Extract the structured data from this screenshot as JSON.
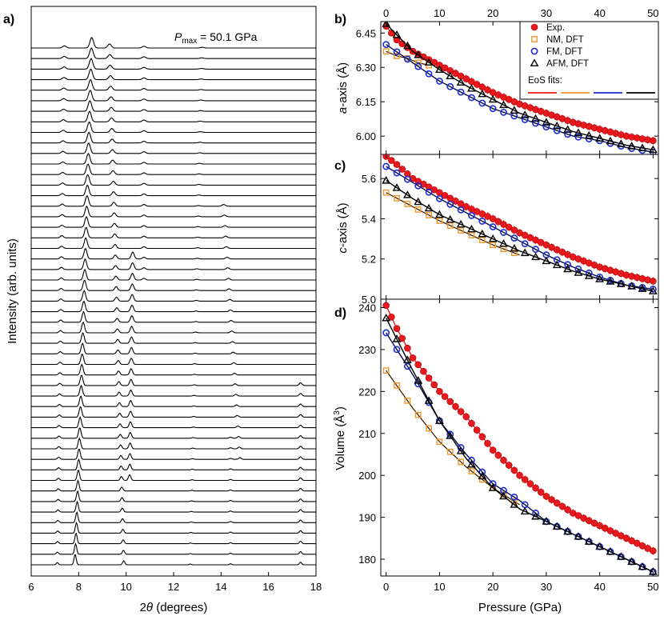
{
  "figure": {
    "panel_labels": [
      "a)",
      "b)",
      "c)",
      "d)"
    ],
    "pmax_label": "P",
    "pmax_sub": "max",
    "pmax_value": " =  50.1 GPa",
    "colors": {
      "exp": "#e8191e",
      "nm": "#f0962b",
      "fm": "#1a2bd6",
      "afm": "#000000"
    }
  },
  "chart_data": [
    {
      "id": "a",
      "type": "line",
      "title": "",
      "xlabel_prefix": "2",
      "xlabel_symbol": "θ",
      "xlabel_suffix": " (degrees)",
      "ylabel": "Intensity (arb. units)",
      "xlim": [
        6,
        18
      ],
      "x_ticks": [
        "6",
        "8",
        "10",
        "12",
        "14",
        "16",
        "18"
      ],
      "n_patterns": 50,
      "note": "stacked XRD patterns; bottom = lowest pressure, top = 50.1 GPa",
      "peaks_bottom": [
        {
          "pos": 7.1,
          "h": 0.3
        },
        {
          "pos": 7.85,
          "h": 1.2
        },
        {
          "pos": 9.9,
          "h": 0.45
        },
        {
          "pos": 12.7,
          "h": 0.12
        },
        {
          "pos": 14.4,
          "h": 0.12
        },
        {
          "pos": 17.35,
          "h": 0.4
        }
      ],
      "peaks_top": [
        {
          "pos": 8.55,
          "h": 1.2
        },
        {
          "pos": 9.3,
          "h": 0.7
        },
        {
          "pos": 10.75,
          "h": 0.2
        }
      ]
    },
    {
      "id": "b",
      "type": "scatter",
      "xlabel": "Pressure (GPa)",
      "ylabel_italic": "a",
      "ylabel_rest": "-axis (Å)",
      "xlim": [
        -1,
        51
      ],
      "ylim": [
        5.92,
        6.5
      ],
      "x_ticks": [
        "0",
        "10",
        "20",
        "30",
        "40",
        "50"
      ],
      "y_ticks": [
        "6.00",
        "6.15",
        "6.30",
        "6.45"
      ],
      "y_tick_values": [
        6.0,
        6.15,
        6.3,
        6.45
      ],
      "series": [
        {
          "name": "Exp.",
          "x": [
            0,
            2,
            5,
            10,
            15,
            20,
            25,
            30,
            35,
            40,
            45,
            50
          ],
          "y": [
            6.48,
            6.42,
            6.37,
            6.31,
            6.25,
            6.19,
            6.14,
            6.1,
            6.06,
            6.03,
            6.0,
            5.98
          ]
        },
        {
          "name": "NM, DFT",
          "x": [
            0,
            2,
            4,
            6,
            8
          ],
          "y": [
            6.37,
            6.35,
            6.34,
            6.32,
            6.31
          ]
        },
        {
          "name": "FM, DFT",
          "x": [
            0,
            5,
            10,
            15,
            20,
            25,
            30,
            35,
            40,
            45,
            50
          ],
          "y": [
            6.4,
            6.32,
            6.24,
            6.18,
            6.12,
            6.08,
            6.04,
            6.0,
            5.98,
            5.95,
            5.93
          ]
        },
        {
          "name": "AFM, DFT",
          "x": [
            0,
            5,
            10,
            15,
            20,
            25,
            30,
            35,
            40,
            45,
            50
          ],
          "y": [
            6.49,
            6.37,
            6.29,
            6.22,
            6.16,
            6.1,
            6.06,
            6.02,
            5.99,
            5.96,
            5.94
          ]
        }
      ]
    },
    {
      "id": "c",
      "type": "scatter",
      "xlabel": "",
      "ylabel_italic": "c",
      "ylabel_rest": "-axis (Å)",
      "xlim": [
        -1,
        51
      ],
      "ylim": [
        5.0,
        5.72
      ],
      "y_ticks": [
        "5.0",
        "5.2",
        "5.4",
        "5.6"
      ],
      "y_tick_values": [
        5.0,
        5.2,
        5.4,
        5.6
      ],
      "series": [
        {
          "name": "Exp.",
          "x": [
            0,
            2,
            5,
            10,
            15,
            20,
            25,
            30,
            35,
            40,
            45,
            50
          ],
          "y": [
            5.71,
            5.67,
            5.6,
            5.53,
            5.46,
            5.4,
            5.33,
            5.27,
            5.21,
            5.16,
            5.12,
            5.09
          ]
        },
        {
          "name": "NM, DFT",
          "x": [
            0,
            5,
            10,
            15,
            20,
            25
          ],
          "y": [
            5.53,
            5.46,
            5.39,
            5.33,
            5.27,
            5.22
          ]
        },
        {
          "name": "FM, DFT",
          "x": [
            0,
            5,
            10,
            15,
            20,
            25,
            30,
            35,
            40,
            45,
            50
          ],
          "y": [
            5.66,
            5.58,
            5.5,
            5.43,
            5.36,
            5.29,
            5.22,
            5.16,
            5.11,
            5.07,
            5.05
          ]
        },
        {
          "name": "AFM, DFT",
          "x": [
            0,
            5,
            10,
            15,
            20,
            25,
            30,
            35,
            40,
            45,
            50
          ],
          "y": [
            5.59,
            5.5,
            5.42,
            5.36,
            5.3,
            5.24,
            5.19,
            5.14,
            5.1,
            5.07,
            5.04
          ]
        }
      ]
    },
    {
      "id": "d",
      "type": "scatter",
      "xlabel": "Pressure (GPa)",
      "ylabel": "Volume (Å",
      "ylabel_sup": "3",
      "ylabel_end": ")",
      "xlim": [
        -1,
        51
      ],
      "ylim": [
        176,
        242
      ],
      "x_ticks": [
        "0",
        "10",
        "20",
        "30",
        "40",
        "50"
      ],
      "y_ticks": [
        "180",
        "190",
        "200",
        "210",
        "220",
        "230",
        "240"
      ],
      "y_tick_values": [
        180,
        190,
        200,
        210,
        220,
        230,
        240
      ],
      "series": [
        {
          "name": "Exp.",
          "x": [
            0,
            2,
            5,
            10,
            15,
            20,
            25,
            30,
            35,
            40,
            45,
            50
          ],
          "y": [
            240.5,
            235,
            228,
            220,
            214,
            206,
            200,
            195,
            191,
            188,
            185,
            182
          ]
        },
        {
          "name": "NM, DFT",
          "x": [
            0,
            5,
            10,
            15,
            20,
            25
          ],
          "y": [
            225,
            216,
            208,
            202,
            197,
            193
          ]
        },
        {
          "name": "FM, DFT",
          "x": [
            0,
            5,
            10,
            15,
            20,
            25,
            30,
            35,
            40,
            45,
            50
          ],
          "y": [
            234,
            224,
            213,
            205,
            198,
            194,
            189,
            186,
            183,
            180,
            177
          ]
        },
        {
          "name": "AFM, DFT",
          "x": [
            0,
            5,
            10,
            15,
            20,
            25,
            30,
            35,
            40,
            45,
            50
          ],
          "y": [
            237.5,
            225,
            213,
            204,
            197,
            192,
            189,
            186,
            183,
            180,
            177
          ]
        }
      ]
    }
  ],
  "legend": {
    "entries": [
      "Exp.",
      "NM, DFT",
      "FM, DFT",
      "AFM, DFT"
    ],
    "fits_label": "EoS fits:",
    "placement": "top-right of panel b"
  }
}
